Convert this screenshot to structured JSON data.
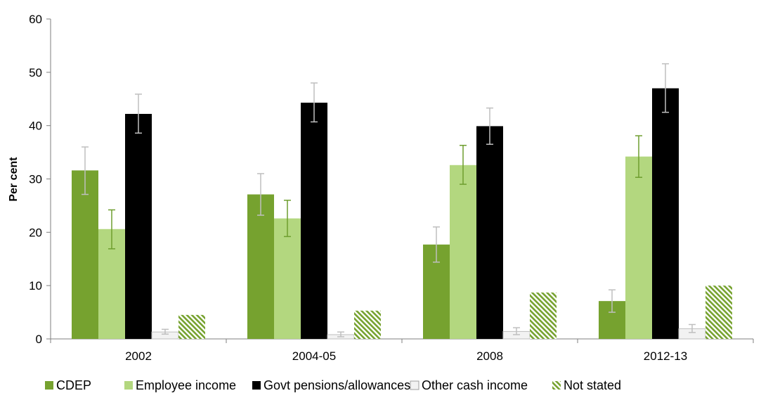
{
  "chart_data": {
    "type": "bar",
    "title": "",
    "xlabel": "",
    "ylabel": "Per cent",
    "ylim": [
      0,
      60
    ],
    "yticks": [
      "0",
      "10",
      "20",
      "30",
      "40",
      "50",
      "60"
    ],
    "categories": [
      "2002",
      "2004-05",
      "2008",
      "2012-13"
    ],
    "grid": false,
    "legend_position": "bottom",
    "series": [
      {
        "name": "CDEP",
        "color": "#76a22f",
        "pattern": "solid",
        "values": [
          31.6,
          27.1,
          17.7,
          7.1
        ],
        "error_low": [
          27.1,
          23.2,
          14.4,
          5.0
        ],
        "error_high": [
          36.0,
          31.0,
          21.0,
          9.2
        ],
        "error_color": "#bfbfbf"
      },
      {
        "name": "Employee income",
        "color": "#b3d77f",
        "pattern": "solid",
        "values": [
          20.6,
          22.6,
          32.6,
          34.2
        ],
        "error_low": [
          16.9,
          19.2,
          29.0,
          30.3
        ],
        "error_high": [
          24.2,
          26.0,
          36.3,
          38.1
        ],
        "error_color": "#6e9e2f"
      },
      {
        "name": "Govt pensions/allowances",
        "color": "#000000",
        "pattern": "solid",
        "values": [
          42.2,
          44.3,
          39.9,
          47.0
        ],
        "error_low": [
          38.6,
          40.7,
          36.5,
          42.5
        ],
        "error_high": [
          45.9,
          48.0,
          43.3,
          51.6
        ],
        "error_color": "#bfbfbf"
      },
      {
        "name": "Other cash income",
        "color": "#f2f2f2",
        "pattern": "solid",
        "values": [
          1.3,
          0.8,
          1.4,
          1.9
        ],
        "error_low": [
          0.9,
          0.4,
          0.8,
          1.2
        ],
        "error_high": [
          1.8,
          1.3,
          2.1,
          2.7
        ],
        "error_color": "#bfbfbf"
      },
      {
        "name": "Not stated",
        "color": "#76a22f",
        "pattern": "hatched",
        "values": [
          4.5,
          5.3,
          8.7,
          10.0
        ]
      }
    ]
  }
}
